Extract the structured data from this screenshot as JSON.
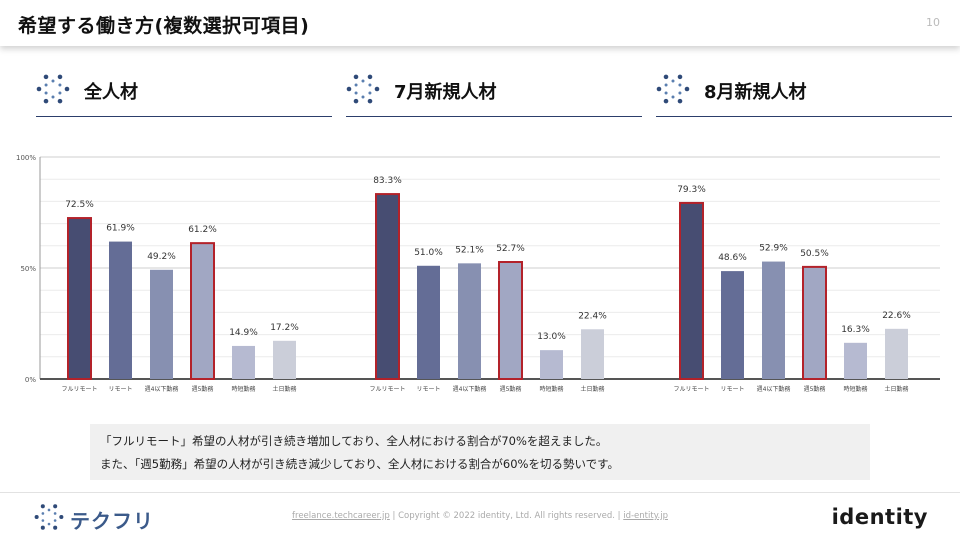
{
  "header": {
    "title": "希望する働き方(複数選択可項目)",
    "page_number": "10"
  },
  "sections": [
    {
      "label": "全人材"
    },
    {
      "label": "7月新規人材"
    },
    {
      "label": "8月新規人材"
    }
  ],
  "colors": {
    "highlight_border": "#b3222a",
    "bars": [
      "#474d72",
      "#646d96",
      "#8790b1",
      "#a1a7c3",
      "#b6bad1",
      "#cbced9"
    ]
  },
  "chart_data": {
    "type": "bar",
    "categories": [
      "フルリモート",
      "リモート",
      "週4以下勤務",
      "週5勤務",
      "時短勤務",
      "土日勤務"
    ],
    "y_ticks": [
      "0%",
      "50%",
      "100%"
    ],
    "ylim": [
      0,
      100
    ],
    "highlighted_categories": [
      "フルリモート",
      "週5勤務"
    ],
    "groups": [
      {
        "values": [
          72.5,
          61.9,
          49.2,
          61.2,
          14.9,
          17.2
        ],
        "labels": [
          "72.5%",
          "61.9%",
          "49.2%",
          "61.2%",
          "14.9%",
          "17.2%"
        ]
      },
      {
        "values": [
          83.3,
          51.0,
          52.1,
          52.7,
          13.0,
          22.4
        ],
        "labels": [
          "83.3%",
          "51.0%",
          "52.1%",
          "52.7%",
          "13.0%",
          "22.4%"
        ]
      },
      {
        "values": [
          79.3,
          48.6,
          52.9,
          50.5,
          16.3,
          22.6
        ],
        "labels": [
          "79.3%",
          "48.6%",
          "52.9%",
          "50.5%",
          "16.3%",
          "22.6%"
        ]
      }
    ]
  },
  "summary": {
    "line1": "「フルリモート」希望の人材が引き続き増加しており、全人材における割合が70%を超えました。",
    "line2": "また、「週5勤務」希望の人材が引き続き減少しており、全人材における割合が60%を切る勢いです。"
  },
  "footer": {
    "brand_name": "テクフリ",
    "link1": "freelance.techcareer.jp",
    "separator": "|",
    "copyright": "Copyright © 2022 identity, Ltd. All rights reserved.",
    "link2": "id-entity.jp",
    "company_logo_text": "identity"
  }
}
